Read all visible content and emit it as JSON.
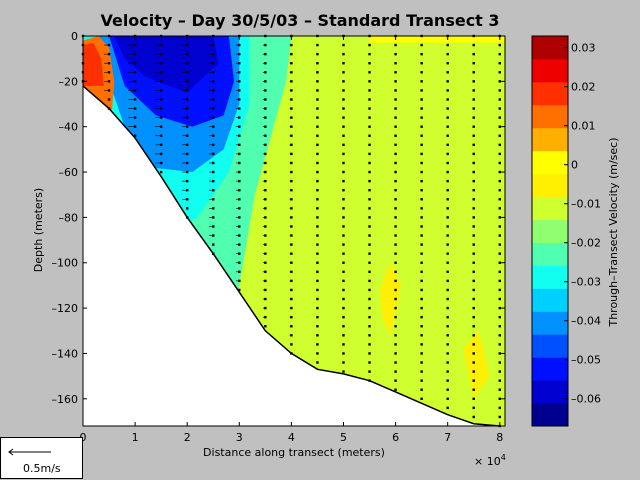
{
  "chart_data": {
    "type": "heatmap",
    "title": "Velocity – Day 30/5/03 – Standard Transect 3",
    "xlabel": "Distance along transect (meters)",
    "x_multiplier_label": "× 10",
    "x_multiplier_exp": "4",
    "ylabel": "Depth (meters)",
    "colorbar_label": "Through–Transect Velocity (m/sec)",
    "xlim": [
      0,
      81000
    ],
    "ylim": [
      -172,
      0
    ],
    "x_ticks": [
      0,
      10000,
      20000,
      30000,
      40000,
      50000,
      60000,
      70000,
      80000
    ],
    "x_tick_labels": [
      "0",
      "1",
      "2",
      "3",
      "4",
      "5",
      "6",
      "7",
      "8"
    ],
    "y_ticks": [
      0,
      -20,
      -40,
      -60,
      -80,
      -100,
      -120,
      -140,
      -160
    ],
    "y_tick_labels": [
      "0",
      "–20",
      "–40",
      "–60",
      "–80",
      "–100",
      "–120",
      "–140",
      "–160"
    ],
    "colorbar_range": [
      -0.067,
      0.033
    ],
    "colorbar_ticks": [
      0.03,
      0.02,
      0.01,
      0,
      -0.01,
      -0.02,
      -0.03,
      -0.04,
      -0.05,
      -0.06
    ],
    "colorbar_tick_labels": [
      "0.03",
      "0.02",
      "0.01",
      "0",
      "–0.01",
      "–0.02",
      "–0.03",
      "–0.04",
      "–0.05",
      "–0.06"
    ],
    "colormap": [
      "#00008f",
      "#0000cf",
      "#0010ff",
      "#0050ff",
      "#0090ff",
      "#00d0ff",
      "#10ffef",
      "#50ffaf",
      "#90ff6f",
      "#d0ff2f",
      "#ffef00",
      "#ffff00",
      "#ffaf00",
      "#ff7000",
      "#ff3000",
      "#ef0000",
      "#af0000"
    ],
    "bottom_profile": [
      [
        0,
        -22
      ],
      [
        5000,
        -32
      ],
      [
        10000,
        -45
      ],
      [
        15000,
        -62
      ],
      [
        20000,
        -80
      ],
      [
        25000,
        -96
      ],
      [
        30000,
        -113
      ],
      [
        35000,
        -130
      ],
      [
        40000,
        -140
      ],
      [
        45000,
        -147
      ],
      [
        50000,
        -149
      ],
      [
        55000,
        -152
      ],
      [
        60000,
        -157
      ],
      [
        65000,
        -162
      ],
      [
        70000,
        -167
      ],
      [
        75000,
        -171
      ],
      [
        80000,
        -172
      ]
    ],
    "velocity_regions": [
      {
        "value": -0.01,
        "points": [
          [
            0,
            0
          ],
          [
            81000,
            0
          ],
          [
            81000,
            -172
          ],
          [
            0,
            -172
          ]
        ]
      },
      {
        "value": -0.02,
        "points": [
          [
            0,
            0
          ],
          [
            40000,
            0
          ],
          [
            39000,
            -20
          ],
          [
            33000,
            -70
          ],
          [
            30000,
            -110
          ],
          [
            28000,
            -140
          ],
          [
            15000,
            -172
          ],
          [
            0,
            -172
          ]
        ]
      },
      {
        "value": -0.025,
        "points": [
          [
            0,
            0
          ],
          [
            36000,
            0
          ],
          [
            35000,
            -20
          ],
          [
            30000,
            -60
          ],
          [
            26000,
            -100
          ],
          [
            20000,
            -150
          ],
          [
            0,
            -172
          ]
        ]
      },
      {
        "value": -0.03,
        "points": [
          [
            0,
            0
          ],
          [
            32000,
            0
          ],
          [
            32000,
            -30
          ],
          [
            28000,
            -60
          ],
          [
            22000,
            -80
          ],
          [
            15000,
            -90
          ],
          [
            0,
            -90
          ]
        ]
      },
      {
        "value": -0.04,
        "points": [
          [
            3000,
            0
          ],
          [
            30000,
            0
          ],
          [
            30000,
            -30
          ],
          [
            27000,
            -50
          ],
          [
            21000,
            -60
          ],
          [
            13000,
            -58
          ],
          [
            8000,
            -40
          ],
          [
            5000,
            -20
          ]
        ]
      },
      {
        "value": -0.05,
        "points": [
          [
            5000,
            0
          ],
          [
            28000,
            0
          ],
          [
            29000,
            -20
          ],
          [
            27000,
            -35
          ],
          [
            21000,
            -40
          ],
          [
            14000,
            -35
          ],
          [
            8000,
            -22
          ]
        ]
      },
      {
        "value": -0.06,
        "points": [
          [
            6000,
            0
          ],
          [
            25000,
            0
          ],
          [
            26000,
            -12
          ],
          [
            20000,
            -25
          ],
          [
            12000,
            -18
          ],
          [
            8000,
            -10
          ]
        ]
      },
      {
        "value": -0.005,
        "points": [
          [
            57000,
            -112
          ],
          [
            59000,
            -100
          ],
          [
            61000,
            -110
          ],
          [
            60000,
            -122
          ],
          [
            59000,
            -132
          ],
          [
            57500,
            -125
          ]
        ]
      },
      {
        "value": -0.005,
        "points": [
          [
            73000,
            -138
          ],
          [
            76000,
            -130
          ],
          [
            78000,
            -150
          ],
          [
            75000,
            -160
          ]
        ]
      },
      {
        "value": 0.01,
        "points": [
          [
            0,
            -2
          ],
          [
            3000,
            0
          ],
          [
            5000,
            -5
          ],
          [
            6000,
            -20
          ],
          [
            5500,
            -35
          ],
          [
            3500,
            -30
          ],
          [
            0,
            -22
          ]
        ]
      },
      {
        "value": 0.02,
        "points": [
          [
            0,
            -4
          ],
          [
            2000,
            -3
          ],
          [
            3500,
            -10
          ],
          [
            4000,
            -22
          ],
          [
            2000,
            -22
          ],
          [
            0,
            -22
          ]
        ]
      },
      {
        "value": 0.0,
        "points": [
          [
            55000,
            0
          ],
          [
            81000,
            0
          ],
          [
            81000,
            -3
          ],
          [
            55000,
            -3
          ]
        ]
      }
    ],
    "profile_x": [
      0,
      5000,
      10000,
      15000,
      20000,
      25000,
      30000,
      35000,
      40000,
      45000,
      50000,
      55000,
      60000,
      65000,
      70000,
      75000,
      80000
    ],
    "arrow_lengths_ms": [
      0.05,
      0.06,
      0.08,
      0.07,
      0.06,
      0.05,
      0.04,
      0.03,
      0.02,
      0.015,
      0.01,
      0.01,
      0.01,
      0.01,
      0.01,
      0.01,
      0.01
    ],
    "scale_arrow": {
      "label": "0.5m/s",
      "speed_ms": 0.5
    }
  }
}
